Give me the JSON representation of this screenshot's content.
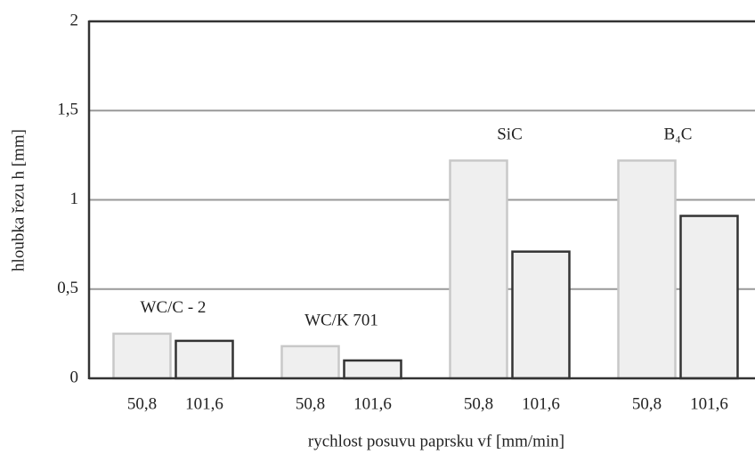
{
  "chart_data": {
    "type": "bar",
    "y_label": "hloubka řezu h [mm]",
    "x_label": "rychlost posuvu paprsku vf [mm/min]",
    "categories": [
      "WC/C - 2",
      "WC/K 701",
      "SiC",
      "B₄C"
    ],
    "series": [
      {
        "name": "50,8",
        "color": "#efefef",
        "edge": "#c8c8c8",
        "values": [
          0.25,
          0.18,
          1.22,
          1.22
        ]
      },
      {
        "name": "101,6",
        "color": "#efefef",
        "edge": "#333333",
        "values": [
          0.21,
          0.1,
          0.71,
          0.91
        ]
      }
    ],
    "ylim": [
      0,
      2
    ],
    "yticks": [
      0,
      {
        "value": 0.5,
        "label": "0,5"
      },
      1,
      {
        "value": 1.5,
        "label": "1,5"
      },
      2
    ],
    "grid": true
  }
}
